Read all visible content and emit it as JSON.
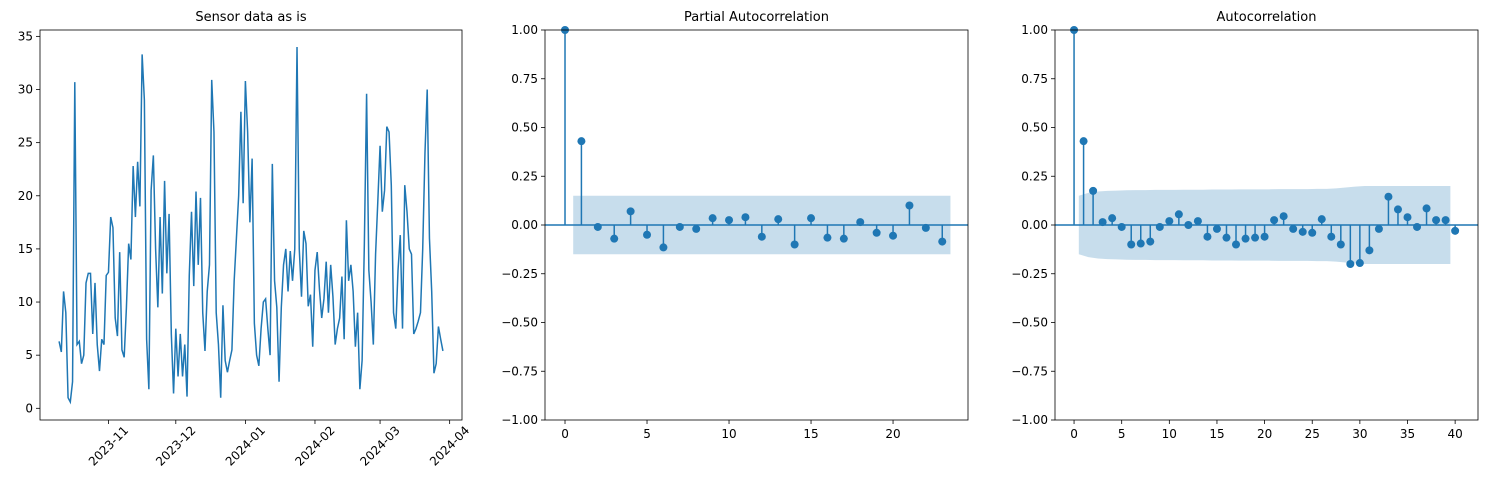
{
  "chart_data": [
    {
      "type": "line",
      "title": "Sensor data as is",
      "color": "#1f77b4",
      "x": [
        -22,
        -21,
        -20,
        -19,
        -18,
        -17,
        -16,
        -15,
        -14,
        -13,
        -12,
        -11,
        -10,
        -9,
        -8,
        -7,
        -6,
        -5,
        -4,
        -3,
        -2,
        -1,
        0,
        1,
        2,
        3,
        4,
        5,
        6,
        7,
        8,
        9,
        10,
        11,
        12,
        13,
        14,
        15,
        16,
        17,
        18,
        19,
        20,
        21,
        22,
        23,
        24,
        25,
        26,
        27,
        28,
        29,
        30,
        31,
        32,
        33,
        34,
        35,
        36,
        37,
        38,
        39,
        40,
        41,
        42,
        43,
        44,
        45,
        46,
        47,
        48,
        49,
        50,
        51,
        52,
        53,
        54,
        55,
        56,
        57,
        58,
        59,
        60,
        61,
        62,
        63,
        64,
        65,
        66,
        67,
        68,
        69,
        70,
        71,
        72,
        73,
        74,
        75,
        76,
        77,
        78,
        79,
        80,
        81,
        82,
        83,
        84,
        85,
        86,
        87,
        88,
        89,
        90,
        91,
        92,
        93,
        94,
        95,
        96,
        97,
        98,
        99,
        100,
        101,
        102,
        103,
        104,
        105,
        106,
        107,
        108,
        109,
        110,
        111,
        112,
        113,
        114,
        115,
        116,
        117,
        118,
        119,
        120,
        121,
        122,
        123,
        124,
        125,
        126,
        127,
        128,
        129,
        130,
        131,
        132,
        133,
        134,
        135,
        136,
        137,
        138,
        139,
        140,
        141,
        142,
        143,
        144,
        145,
        146,
        147,
        148,
        149
      ],
      "values": [
        6.3,
        5.3,
        11,
        9,
        1.0,
        0.6,
        2.5,
        30.7,
        6,
        6.3,
        4.2,
        5,
        11.8,
        12.7,
        12.7,
        7,
        11.8,
        6,
        3.5,
        6.5,
        6,
        12.5,
        12.8,
        18,
        17,
        8.5,
        6.8,
        14.7,
        5.5,
        4.8,
        9.5,
        15.5,
        14,
        22.8,
        18,
        23.2,
        19,
        33.3,
        29,
        6.5,
        1.8,
        20.5,
        23.8,
        15,
        9.5,
        18,
        10.8,
        21.4,
        12.7,
        18.3,
        7,
        1.4,
        7.5,
        3,
        7,
        3,
        6,
        1.1,
        12.5,
        18.5,
        11.5,
        20.4,
        13.5,
        19.8,
        9,
        5.4,
        11,
        13.5,
        30.9,
        26,
        9,
        6,
        1.0,
        9.7,
        4.5,
        3.4,
        4.5,
        5.5,
        12,
        16,
        20,
        27.9,
        19.3,
        30.8,
        26,
        17.5,
        23.5,
        8,
        5,
        4,
        7.5,
        10,
        10.3,
        7.5,
        5,
        23,
        12,
        9.5,
        2.5,
        9.5,
        13.5,
        15,
        11,
        14.8,
        12,
        15,
        34,
        15,
        10.5,
        16.7,
        15.5,
        9.6,
        10.7,
        5.8,
        13,
        14.7,
        11.2,
        8.5,
        10.3,
        13.8,
        9,
        13.5,
        10.5,
        6,
        7.5,
        8.5,
        12.4,
        6.5,
        17.7,
        12,
        13.5,
        11,
        5.8,
        9,
        1.8,
        4.5,
        15.5,
        29.6,
        13,
        10,
        6,
        14.5,
        19.5,
        24.7,
        18.5,
        20.5,
        26.5,
        26,
        21,
        9,
        7.5,
        13,
        16.3,
        7.5,
        21,
        18.5,
        15,
        14.5,
        7,
        7.5,
        8.2,
        9,
        15,
        24,
        30,
        16,
        11,
        3.3,
        4.2,
        7.7,
        6.5,
        5.4
      ],
      "xlim": [
        -30.5,
        157.5
      ],
      "xticks": [
        {
          "value": 0,
          "label": "2023-11"
        },
        {
          "value": 30,
          "label": "2023-12"
        },
        {
          "value": 61,
          "label": "2024-01"
        },
        {
          "value": 92,
          "label": "2024-02"
        },
        {
          "value": 121,
          "label": "2024-03"
        },
        {
          "value": 152,
          "label": "2024-04"
        }
      ],
      "xtick_rotation": 45,
      "ylim": [
        -1.1,
        35.6
      ],
      "yticks": [
        0,
        5,
        10,
        15,
        20,
        25,
        30,
        35
      ]
    },
    {
      "type": "stem",
      "title": "Partial Autocorrelation",
      "color": "#1f77b4",
      "x": [
        0,
        1,
        2,
        3,
        4,
        5,
        6,
        7,
        8,
        9,
        10,
        11,
        12,
        13,
        14,
        15,
        16,
        17,
        18,
        19,
        20,
        21,
        22,
        23
      ],
      "values": [
        1.0,
        0.43,
        -0.01,
        -0.07,
        0.07,
        -0.05,
        -0.115,
        -0.01,
        -0.02,
        0.035,
        0.025,
        0.04,
        -0.06,
        0.03,
        -0.1,
        0.035,
        -0.065,
        -0.07,
        0.015,
        -0.04,
        -0.055,
        0.1,
        -0.015,
        -0.085
      ],
      "confidence_band": 0.15,
      "xlim": [
        -1.22,
        24.57
      ],
      "xticks": [
        0,
        5,
        10,
        15,
        20
      ],
      "ylim": [
        -1,
        1
      ],
      "yticks": [
        {
          "value": -1,
          "label": "−1.00"
        },
        {
          "value": -0.75,
          "label": "−0.75"
        },
        {
          "value": -0.5,
          "label": "−0.50"
        },
        {
          "value": -0.25,
          "label": "−0.25"
        },
        {
          "value": 0,
          "label": "0.00"
        },
        {
          "value": 0.25,
          "label": "0.25"
        },
        {
          "value": 0.5,
          "label": "0.50"
        },
        {
          "value": 0.75,
          "label": "0.75"
        },
        {
          "value": 1,
          "label": "1.00"
        }
      ]
    },
    {
      "type": "stem",
      "title": "Autocorrelation",
      "color": "#1f77b4",
      "x": [
        0,
        1,
        2,
        3,
        4,
        5,
        6,
        7,
        8,
        9,
        10,
        11,
        12,
        13,
        14,
        15,
        16,
        17,
        18,
        19,
        20,
        21,
        22,
        23,
        24,
        25,
        26,
        27,
        28,
        29,
        30,
        31,
        32,
        33,
        34,
        35,
        36,
        37,
        38,
        39,
        40
      ],
      "values": [
        1.0,
        0.43,
        0.175,
        0.015,
        0.035,
        -0.01,
        -0.1,
        -0.095,
        -0.085,
        -0.01,
        0.02,
        0.055,
        0.0,
        0.02,
        -0.06,
        -0.02,
        -0.065,
        -0.1,
        -0.07,
        -0.065,
        -0.06,
        0.025,
        0.045,
        -0.02,
        -0.035,
        -0.04,
        0.03,
        -0.06,
        -0.1,
        -0.2,
        -0.195,
        -0.13,
        -0.02,
        0.145,
        0.08,
        0.04,
        -0.01,
        0.085,
        0.025,
        0.025,
        -0.03
      ],
      "confidence_band": [
        0.15,
        0.165,
        0.172,
        0.175,
        0.176,
        0.178,
        0.179,
        0.179,
        0.18,
        0.18,
        0.18,
        0.181,
        0.181,
        0.181,
        0.182,
        0.182,
        0.182,
        0.183,
        0.183,
        0.183,
        0.183,
        0.184,
        0.184,
        0.184,
        0.184,
        0.185,
        0.185,
        0.188,
        0.192,
        0.197,
        0.2,
        0.2,
        0.2,
        0.2,
        0.2,
        0.2,
        0.2,
        0.2,
        0.2,
        0.2
      ],
      "xlim": [
        -2,
        42.4
      ],
      "xticks": [
        0,
        5,
        10,
        15,
        20,
        25,
        30,
        35,
        40
      ],
      "ylim": [
        -1,
        1
      ],
      "yticks": [
        {
          "value": -1,
          "label": "−1.00"
        },
        {
          "value": -0.75,
          "label": "−0.75"
        },
        {
          "value": -0.5,
          "label": "−0.50"
        },
        {
          "value": -0.25,
          "label": "−0.25"
        },
        {
          "value": 0,
          "label": "0.00"
        },
        {
          "value": 0.25,
          "label": "0.25"
        },
        {
          "value": 0.5,
          "label": "0.50"
        },
        {
          "value": 0.75,
          "label": "0.75"
        },
        {
          "value": 1,
          "label": "1.00"
        }
      ]
    }
  ]
}
